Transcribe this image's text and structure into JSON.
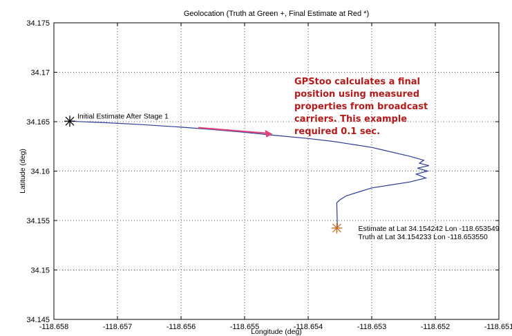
{
  "chart_data": {
    "type": "line",
    "title": "Geolocation (Truth at Green +, Final Estimate at Red *)",
    "xlabel": "Longitude (deg)",
    "ylabel": "Latitude (deg)",
    "xlim": [
      -118.658,
      -118.651
    ],
    "ylim": [
      34.145,
      34.175
    ],
    "x_ticks": [
      -118.658,
      -118.657,
      -118.656,
      -118.655,
      -118.654,
      -118.653,
      -118.652,
      -118.651
    ],
    "y_ticks": [
      34.145,
      34.15,
      34.155,
      34.16,
      34.165,
      34.17,
      34.175
    ],
    "x_tick_labels": [
      "-118.658",
      "-118.657",
      "-118.656",
      "-118.655",
      "-118.654",
      "-118.653",
      "-118.652",
      "-118.651"
    ],
    "y_tick_labels": [
      "34.145",
      "34.15",
      "34.155",
      "34.16",
      "34.165",
      "34.17",
      "34.175"
    ],
    "grid": true,
    "series": [
      {
        "color": "#2b3a9a",
        "points": [
          [
            -118.65775,
            34.16505
          ],
          [
            -118.6572,
            34.1649
          ],
          [
            -118.6566,
            34.1647
          ],
          [
            -118.656,
            34.16445
          ],
          [
            -118.6555,
            34.1642
          ],
          [
            -118.655,
            34.16392
          ],
          [
            -118.6545,
            34.1636
          ],
          [
            -118.654,
            34.1633
          ],
          [
            -118.6536,
            34.163
          ],
          [
            -118.6533,
            34.1627
          ],
          [
            -118.653,
            34.1624
          ],
          [
            -118.6528,
            34.1621
          ],
          [
            -118.6526,
            34.1618
          ],
          [
            -118.6524,
            34.1615
          ],
          [
            -118.65218,
            34.1611
          ],
          [
            -118.65225,
            34.1608
          ],
          [
            -118.6521,
            34.16055
          ],
          [
            -118.65228,
            34.1603
          ],
          [
            -118.65212,
            34.16
          ],
          [
            -118.6523,
            34.1597
          ],
          [
            -118.65215,
            34.1593
          ],
          [
            -118.6524,
            34.1589
          ],
          [
            -118.6527,
            34.1586
          ],
          [
            -118.653,
            34.1583
          ],
          [
            -118.6532,
            34.1579
          ],
          [
            -118.6534,
            34.1575
          ],
          [
            -118.6535,
            34.1571
          ],
          [
            -118.65355,
            34.1568
          ],
          [
            -118.65354,
            34.15424
          ]
        ]
      }
    ],
    "markers": [
      {
        "name": "initial-estimate",
        "symbol": "*",
        "color": "#000000",
        "x": -118.65775,
        "y": 34.16505
      },
      {
        "name": "truth",
        "symbol": "+",
        "color": "#2ea02e",
        "x": -118.65355,
        "y": 34.154233
      },
      {
        "name": "final-estimate",
        "symbol": "*",
        "color": "#d2691e",
        "x": -118.653549,
        "y": 34.154242
      }
    ],
    "annotations": {
      "initial": "Initial Estimate After Stage 1",
      "estimate": "Estimate at Lat   34.154242 Lon -118.653549",
      "truth": "Truth at Lat   34.154233 Lon -118.653550"
    },
    "note_lines": [
      "GPStoo calculates a final",
      "position using measured",
      "properties from broadcast",
      "carriers.  This example",
      "required 0.1 sec."
    ],
    "note_color": "#b51a1a",
    "arrow_color": "#e0457a",
    "arrow_from": [
      -118.65573,
      34.1644
    ],
    "arrow_to": [
      -118.65456,
      34.16375
    ]
  }
}
